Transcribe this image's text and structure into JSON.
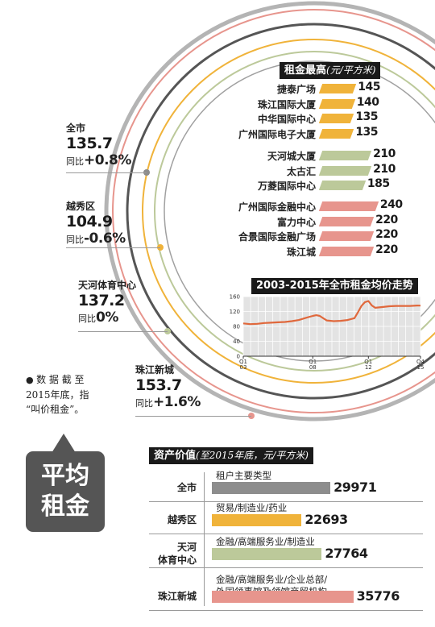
{
  "stats": [
    {
      "name": "全市",
      "value": "135.7",
      "change_label": "同比",
      "change": "+0.8%"
    },
    {
      "name": "越秀区",
      "value": "104.9",
      "change_label": "同比",
      "change": "-0.6%"
    },
    {
      "name": "天河体育中心",
      "value": "137.2",
      "change_label": "同比",
      "change": "0%"
    },
    {
      "name": "珠江新城",
      "value": "153.7",
      "change_label": "同比",
      "change": "+1.6%"
    }
  ],
  "note": {
    "lines": [
      "数 据 截 至",
      "2015年底，指",
      "“叫价租金”。"
    ]
  },
  "badge": {
    "line1": "平均",
    "line2": "租金"
  },
  "colors": {
    "grey": "#8d8d8d",
    "yellow": "#f0b33a",
    "green": "#bcc99a",
    "pink": "#e7958d",
    "dark": "#1a1a1a"
  },
  "chart_data": [
    {
      "type": "bar",
      "title": "租金最高",
      "subtitle": "(元/平方米)",
      "groups": [
        {
          "color": "yellow",
          "items": [
            {
              "name": "捷泰广场",
              "value": 145
            },
            {
              "name": "珠江国际大厦",
              "value": 140
            },
            {
              "name": "中华国际中心",
              "value": 135
            },
            {
              "name": "广州国际电子大厦",
              "value": 135
            }
          ]
        },
        {
          "color": "green",
          "items": [
            {
              "name": "天河城大厦",
              "value": 210
            },
            {
              "name": "太古汇",
              "value": 210
            },
            {
              "name": "万菱国际中心",
              "value": 185
            }
          ]
        },
        {
          "color": "pink",
          "items": [
            {
              "name": "广州国际金融中心",
              "value": 240
            },
            {
              "name": "富力中心",
              "value": 220
            },
            {
              "name": "合景国际金融广场",
              "value": 220
            },
            {
              "name": "珠江城",
              "value": 220
            }
          ]
        }
      ]
    },
    {
      "type": "line",
      "title": "2003-2015年全市租金均价走势",
      "ylim": [
        0,
        160
      ],
      "yticks": [
        "0",
        "40",
        "80",
        "120",
        "160"
      ],
      "xticks": [
        {
          "q": "Q1",
          "y": "03",
          "x": 2003.0
        },
        {
          "q": "Q1",
          "y": "08",
          "x": 2008.0
        },
        {
          "q": "Q1",
          "y": "12",
          "x": 2012.0
        },
        {
          "q": "Q4",
          "y": "15",
          "x": 2015.75
        }
      ],
      "xlim": [
        2003.0,
        2015.75
      ],
      "grid": true,
      "x": [
        2003.0,
        2003.5,
        2004.0,
        2004.5,
        2005.0,
        2005.5,
        2006.0,
        2006.5,
        2007.0,
        2007.5,
        2008.0,
        2008.25,
        2008.5,
        2008.75,
        2009.0,
        2009.5,
        2010.0,
        2010.5,
        2011.0,
        2011.25,
        2011.5,
        2011.75,
        2012.0,
        2012.25,
        2012.5,
        2013.0,
        2013.5,
        2014.0,
        2014.5,
        2015.0,
        2015.5,
        2015.75
      ],
      "series": [
        {
          "color": "#e0683c",
          "values": [
            88,
            86,
            87,
            89,
            90,
            91,
            92,
            94,
            97,
            103,
            108,
            110,
            108,
            102,
            96,
            94,
            95,
            97,
            102,
            118,
            135,
            145,
            148,
            136,
            130,
            132,
            134,
            135,
            135,
            135,
            136,
            135.7
          ]
        }
      ]
    },
    {
      "type": "bar",
      "title": "资产价值",
      "subtitle": "(至2015年底，元/平方米)",
      "type_header": "租户主要类型",
      "xlim": [
        0,
        36000
      ],
      "items": [
        {
          "name": "全市",
          "types": [
            "租户主要类型"
          ],
          "value": 29971,
          "color": "grey"
        },
        {
          "name": "越秀区",
          "types": [
            "贸易/制造业/药业"
          ],
          "value": 22693,
          "color": "yellow"
        },
        {
          "name": "天河体育中心",
          "name_lines": [
            "天河",
            "体育中心"
          ],
          "types": [
            "金融/高端服务业/制造业"
          ],
          "value": 27764,
          "color": "green"
        },
        {
          "name": "珠江新城",
          "types": [
            "金融/高端服务业/企业总部/",
            "外国领事馆及领馆商贸机构"
          ],
          "value": 35776,
          "color": "pink"
        }
      ]
    }
  ]
}
